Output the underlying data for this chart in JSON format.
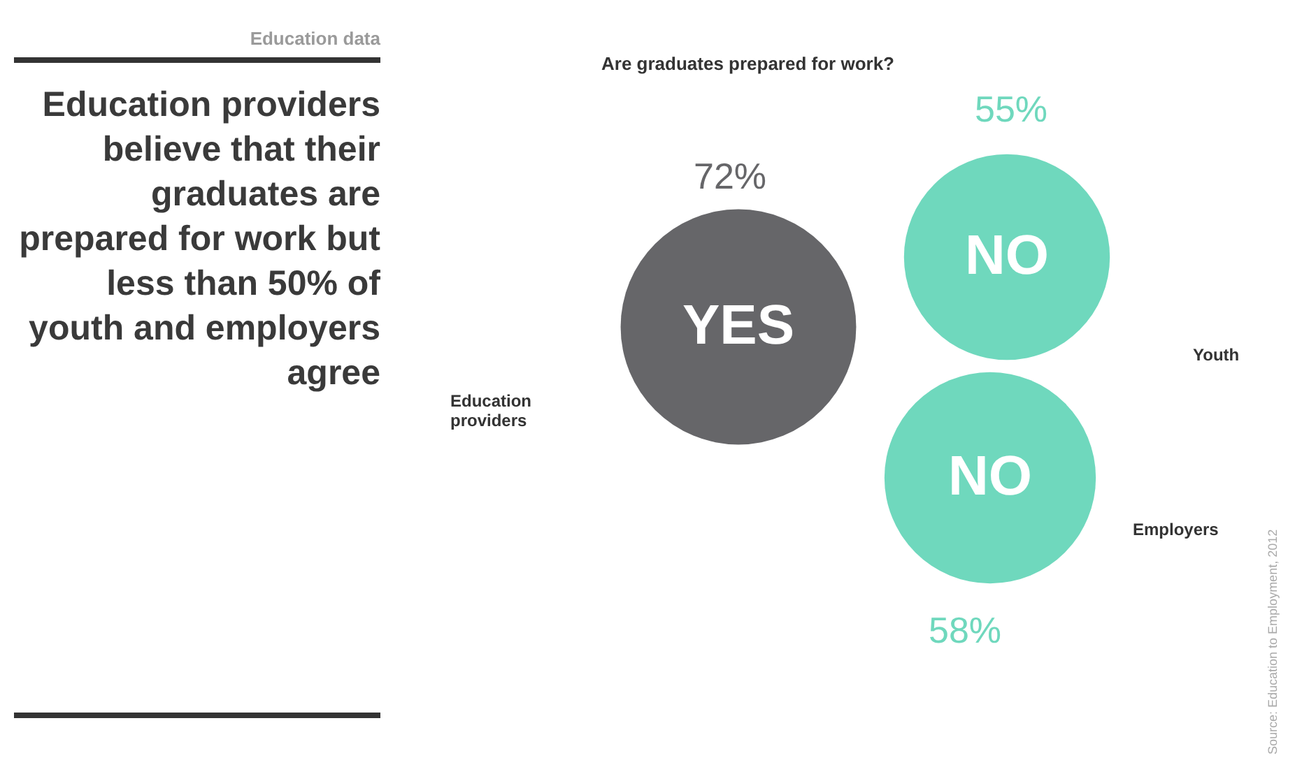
{
  "chart_data": {
    "type": "other",
    "title": "Are graduates prepared for work?",
    "subtitle": "Education providers believe that their graduates are prepared for work but less than 50% of youth and employers agree",
    "categories": [
      "Education providers",
      "Youth",
      "Employers"
    ],
    "values": [
      72,
      55,
      58
    ],
    "value_labels": [
      "72%",
      "55%",
      "58%"
    ],
    "colors": [
      "#666669",
      "#6fd8bd",
      "#6fd8bd"
    ],
    "annotations": [
      {
        "text": "YES",
        "x": "Education providers"
      },
      {
        "text": "NO",
        "x": "Youth"
      },
      {
        "text": "NO",
        "x": "Employers"
      },
      "Education data",
      "Source: Education to Employment, 2012"
    ]
  }
}
